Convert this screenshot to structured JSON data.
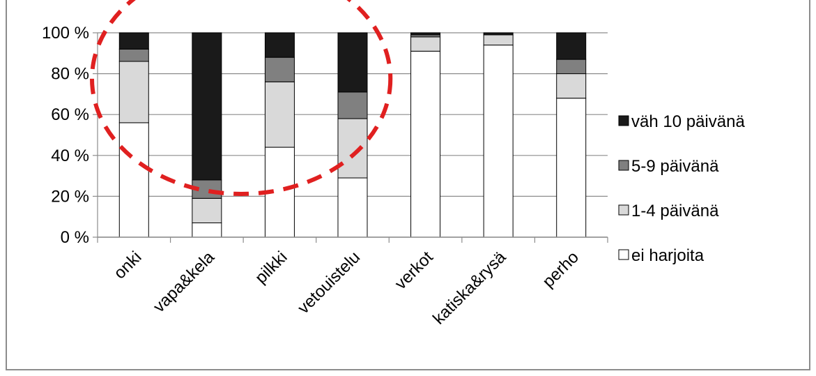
{
  "chart_data": {
    "type": "bar",
    "stacked": true,
    "percent": true,
    "categories": [
      "onki",
      "vapa&kela",
      "pilkki",
      "vetouistelu",
      "verkot",
      "katiska&rysä",
      "perho"
    ],
    "series": [
      {
        "name": "ei harjoita",
        "color": "#ffffff",
        "values": [
          56,
          7,
          44,
          29,
          91,
          94,
          68
        ]
      },
      {
        "name": "1-4 päivänä",
        "color": "#d9d9d9",
        "values": [
          30,
          12,
          32,
          29,
          7,
          5,
          12
        ]
      },
      {
        "name": "5-9 päivänä",
        "color": "#808080",
        "values": [
          6,
          9,
          12,
          13,
          1,
          0,
          7
        ]
      },
      {
        "name": "väh 10 päivänä",
        "color": "#1a1a1a",
        "values": [
          8,
          72,
          12,
          29,
          1,
          1,
          13
        ]
      }
    ],
    "y_ticks": [
      "0 %",
      "20 %",
      "40 %",
      "60 %",
      "80 %",
      "100 %"
    ],
    "ylim": [
      0,
      100
    ],
    "grid": true,
    "legend_position": "right",
    "highlight": {
      "shape": "dashed-ellipse",
      "color": "#e02020",
      "categories": [
        "onki",
        "vapa&kela",
        "pilkki",
        "vetouistelu"
      ]
    }
  }
}
